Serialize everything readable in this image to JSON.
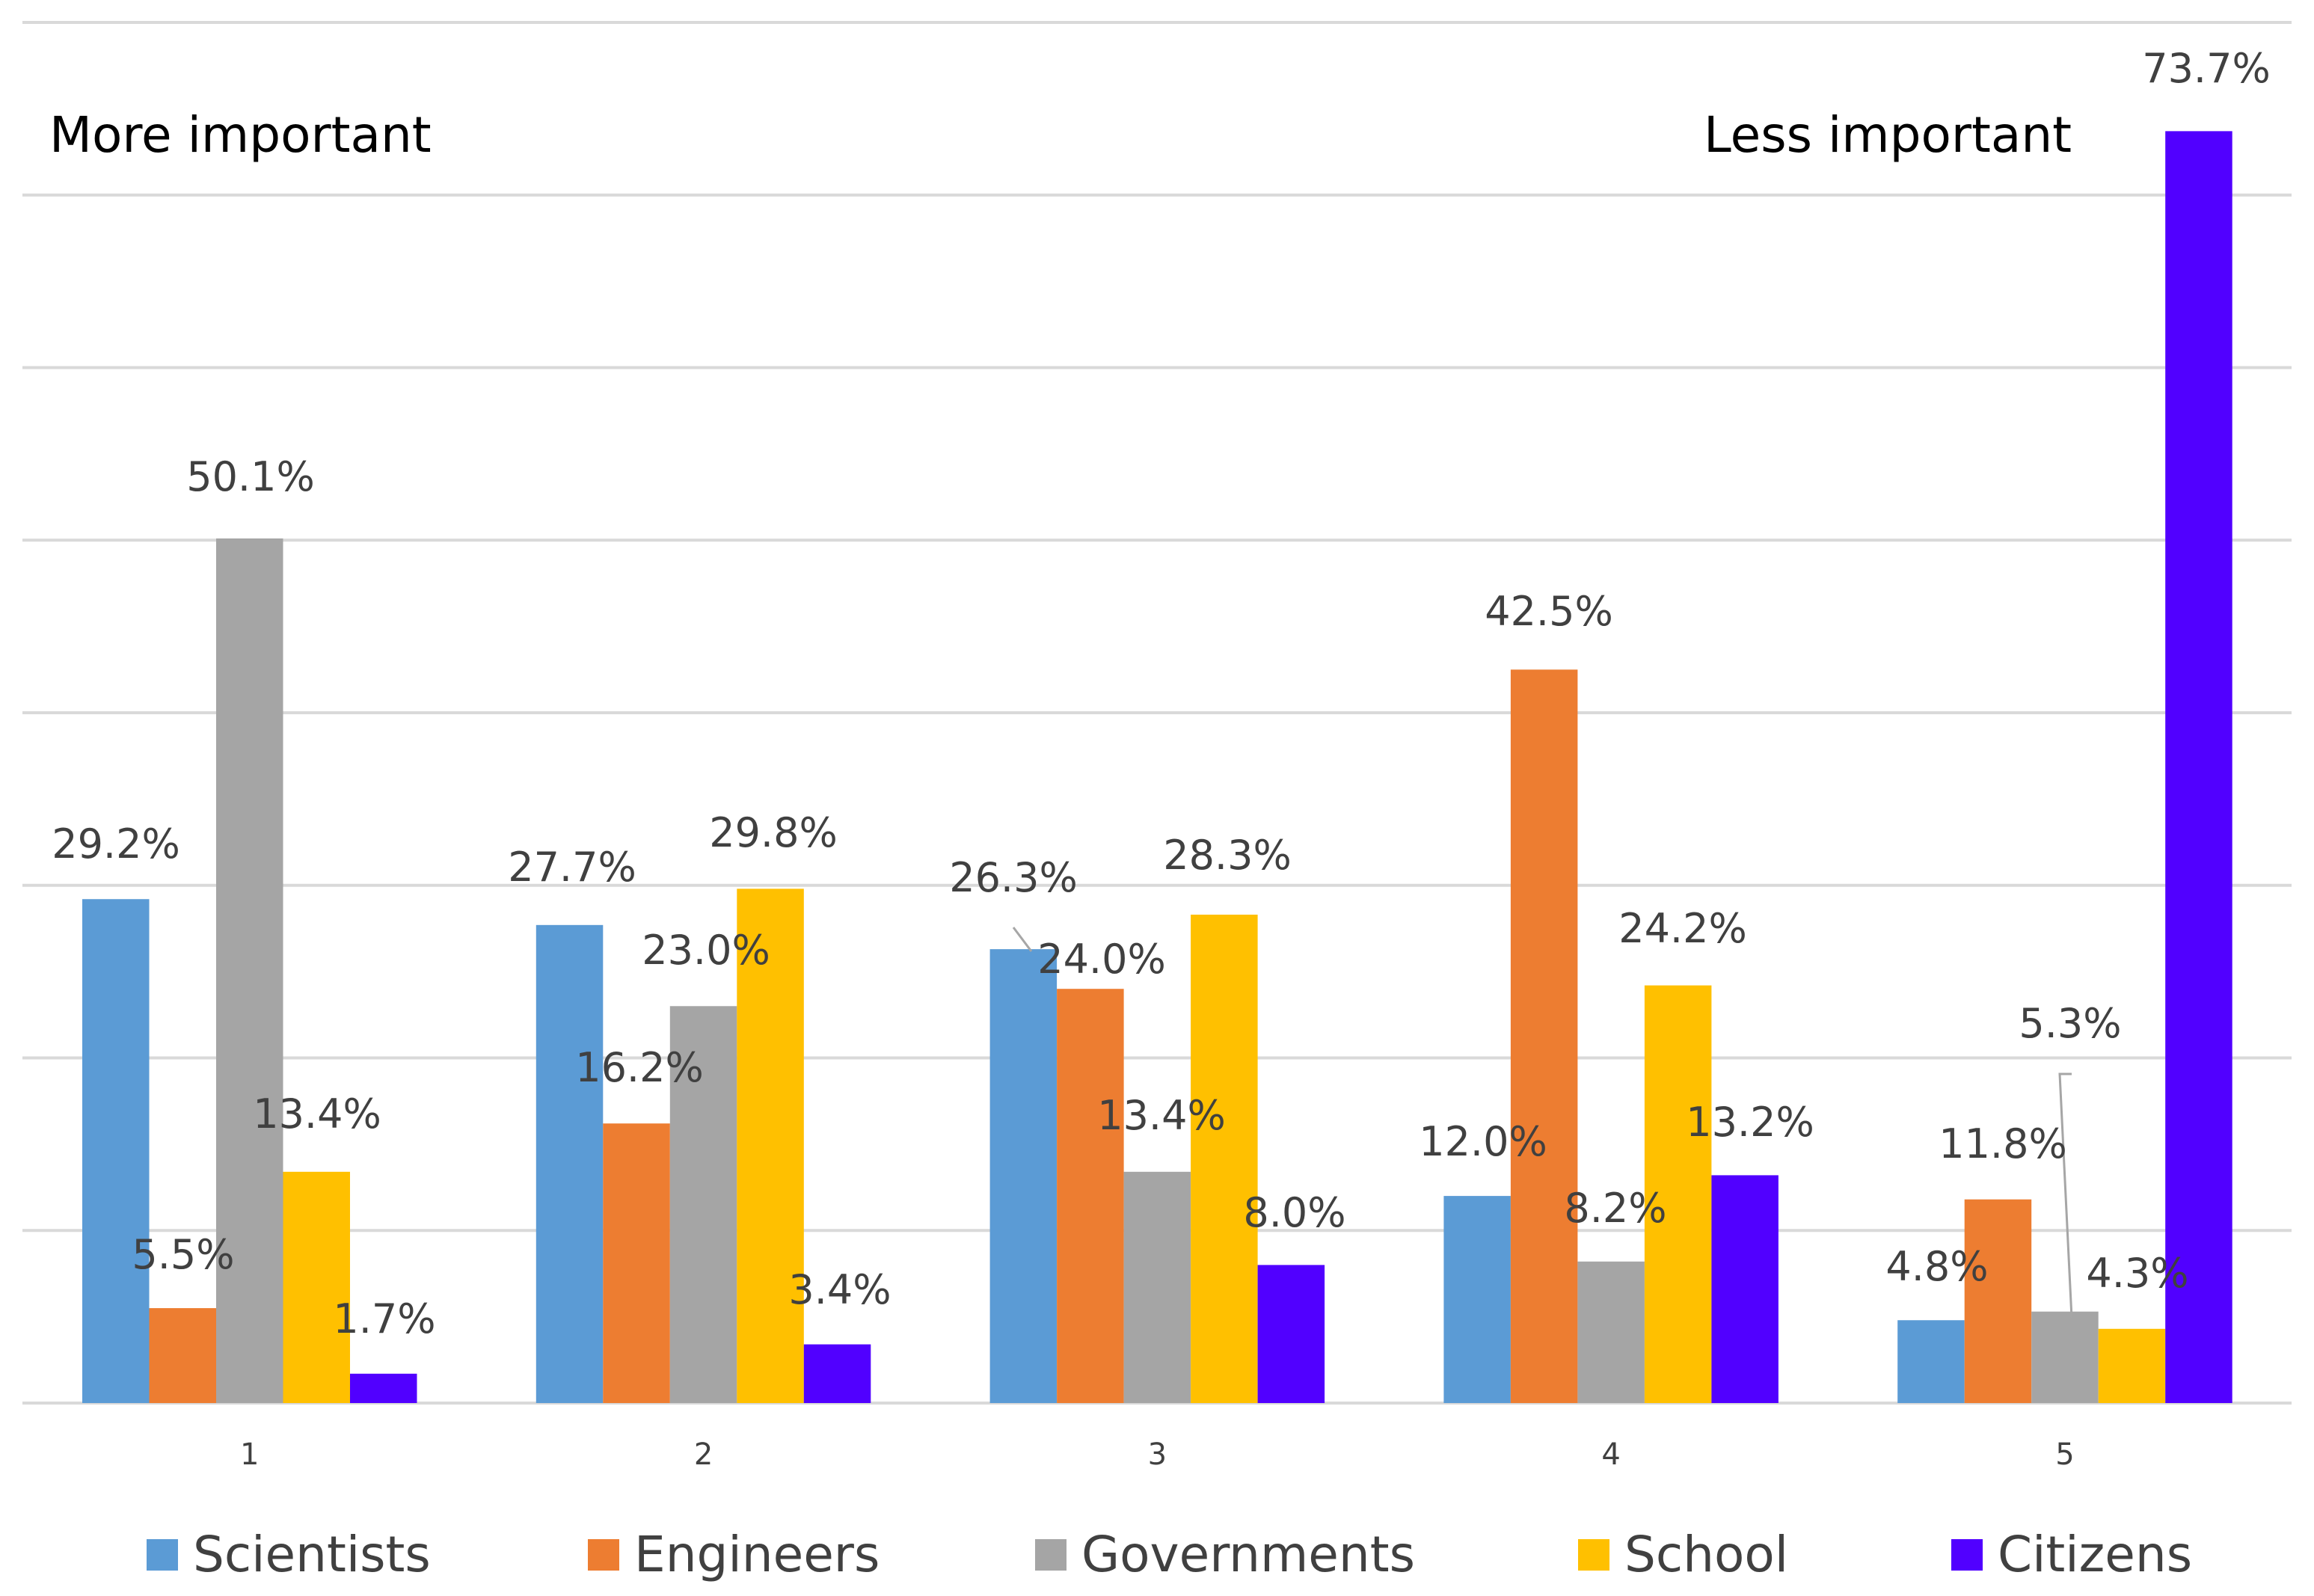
{
  "chart_data": {
    "type": "bar",
    "title": "",
    "xlabel": "",
    "ylabel": "",
    "ylim": [
      0,
      80
    ],
    "grid": true,
    "legend_position": "bottom",
    "categories": [
      "1",
      "2",
      "3",
      "4",
      "5"
    ],
    "series": [
      {
        "name": "Scientists",
        "color": "#5b9bd5",
        "values": [
          29.2,
          27.7,
          26.3,
          12.0,
          4.8
        ],
        "labels": [
          "29.2%",
          "27.7%",
          "26.3%",
          "12.0%",
          "4.8%"
        ]
      },
      {
        "name": "Engineers",
        "color": "#ed7d31",
        "values": [
          5.5,
          16.2,
          24.0,
          42.5,
          11.8
        ],
        "labels": [
          "5.5%",
          "16.2%",
          "24.0%",
          "42.5%",
          "11.8%"
        ]
      },
      {
        "name": "Governments",
        "color": "#a5a5a5",
        "values": [
          50.1,
          23.0,
          13.4,
          8.2,
          5.3
        ],
        "labels": [
          "50.1%",
          "23.0%",
          "13.4%",
          "8.2%",
          "5.3%"
        ]
      },
      {
        "name": "School",
        "color": "#ffc000",
        "values": [
          13.4,
          29.8,
          28.3,
          24.2,
          4.3
        ],
        "labels": [
          "13.4%",
          "29.8%",
          "28.3%",
          "24.2%",
          "4.3%"
        ]
      },
      {
        "name": "Citizens",
        "color": "#5100ff",
        "values": [
          1.7,
          3.4,
          8.0,
          13.2,
          73.7
        ],
        "labels": [
          "1.7%",
          "3.4%",
          "8.0%",
          "13.2%",
          "73.7%"
        ]
      }
    ],
    "annotations": {
      "left": "More important",
      "right": "Less important"
    }
  }
}
